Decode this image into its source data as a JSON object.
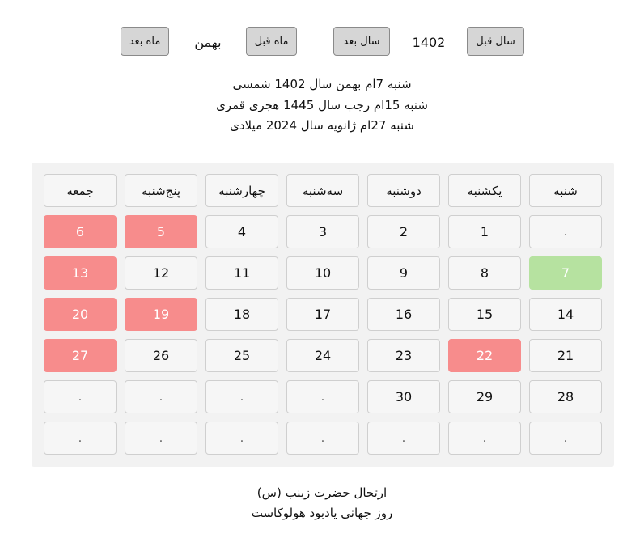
{
  "nav": {
    "next_month": "ماه بعد",
    "month_name": "بهمن",
    "prev_month": "ماه قبل",
    "next_year": "سال بعد",
    "year": "1402",
    "prev_year": "سال قبل"
  },
  "dates": {
    "shamsi": "شنبه 7ام بهمن سال 1402 شمسی",
    "hijri": "شنبه 15ام رجب سال 1445 هجری قمری",
    "gregorian": "شنبه 27ام ژانویه سال 2024 میلادی"
  },
  "weekdays": [
    "شنبه",
    "یکشنبه",
    "دوشنبه",
    "سه‌شنبه",
    "چهارشنبه",
    "پنج‌شنبه",
    "جمعه"
  ],
  "weeks": [
    [
      ".",
      "1",
      "2",
      "3",
      "4",
      "5",
      "6"
    ],
    [
      "7",
      "8",
      "9",
      "10",
      "11",
      "12",
      "13"
    ],
    [
      "14",
      "15",
      "16",
      "17",
      "18",
      "19",
      "20"
    ],
    [
      "21",
      "22",
      "23",
      "24",
      "25",
      "26",
      "27"
    ],
    [
      "28",
      "29",
      "30",
      ".",
      ".",
      ".",
      "."
    ],
    [
      ".",
      ".",
      ".",
      ".",
      ".",
      ".",
      "."
    ]
  ],
  "holidays": [
    "5",
    "6",
    "13",
    "19",
    "20",
    "22",
    "27"
  ],
  "today": "7",
  "colors": {
    "holiday": "#f78c8c",
    "today": "#b6e2a0"
  },
  "events": [
    "ارتحال حضرت زینب (س)",
    "روز جهانی یادبود هولوکاست"
  ]
}
